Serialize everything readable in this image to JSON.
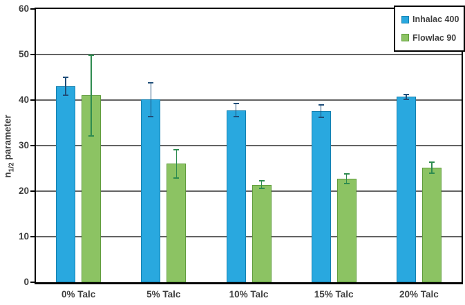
{
  "figure": {
    "y_axis_title": {
      "prefix": "n",
      "subscript": "1/2",
      "suffix": " parameter"
    }
  },
  "chart_data": {
    "type": "bar",
    "title": "",
    "xlabel": "",
    "ylabel": "n_1/2 parameter",
    "categories": [
      "0% Talc",
      "5% Talc",
      "10% Talc",
      "15% Talc",
      "20% Talc"
    ],
    "series": [
      {
        "name": "Inhalac 400",
        "color": "#29a8df",
        "border_color": "#1480b0",
        "error_color": "#1f4e79",
        "values": [
          43.0,
          40.1,
          37.8,
          37.6,
          40.7
        ],
        "errors": [
          2.0,
          3.7,
          1.5,
          1.4,
          0.5
        ]
      },
      {
        "name": "Flowlac 90",
        "color": "#8cc363",
        "border_color": "#5f9c3b",
        "error_color": "#2e8b50",
        "values": [
          41.0,
          26.0,
          21.4,
          22.7,
          25.2
        ],
        "errors": [
          8.9,
          3.1,
          0.8,
          1.1,
          1.2
        ]
      }
    ],
    "ylim": [
      0,
      60
    ],
    "yticks": [
      0,
      10,
      20,
      30,
      40,
      50,
      60
    ],
    "grid": true,
    "legend_position": "top-right"
  }
}
